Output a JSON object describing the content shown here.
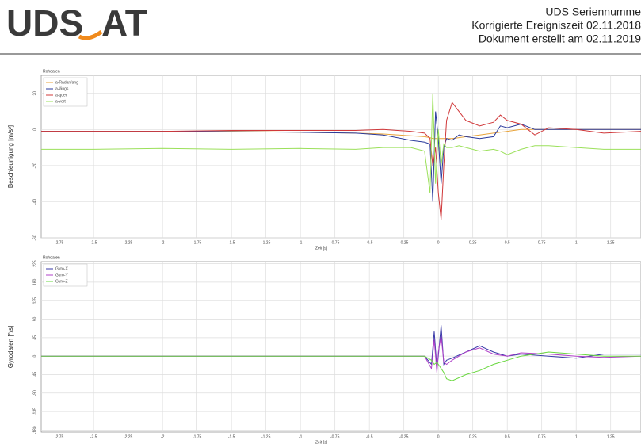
{
  "header": {
    "logo_left": "UDS",
    "logo_right": "AT",
    "lines": [
      "UDS Seriennumme",
      "Korrigierte Ereigniszeit 02.11.2018",
      "Dokument erstellt am 02.11.2019"
    ]
  },
  "chart_data": [
    {
      "type": "line",
      "title": "Rohdaten",
      "x_label": "Zeit [s]",
      "y_label": "Beschleunigung [m/s²]",
      "grid": true,
      "legend": "top-left",
      "xlim": [
        -2.88,
        1.47
      ],
      "xticks": [
        -2.75,
        -2.5,
        -2.25,
        -2,
        -1.75,
        -1.5,
        -1.25,
        -1,
        -0.75,
        -0.5,
        -0.25,
        0,
        0.25,
        0.5,
        0.75,
        1,
        1.25
      ],
      "ylim": [
        -60,
        30
      ],
      "yticks": [
        -60,
        -40,
        -20,
        0,
        20
      ],
      "x": [
        -2.88,
        -2.5,
        -2,
        -1.5,
        -1,
        -0.6,
        -0.4,
        -0.2,
        -0.1,
        -0.06,
        -0.04,
        -0.02,
        0,
        0.02,
        0.04,
        0.06,
        0.1,
        0.15,
        0.2,
        0.3,
        0.4,
        0.45,
        0.5,
        0.6,
        0.7,
        0.8,
        1,
        1.2,
        1.47
      ],
      "series": [
        {
          "name": "a-Radanfang",
          "color": "#e8a33a",
          "values": [
            -1,
            -1,
            -1,
            -1,
            -1.5,
            -2,
            -2.5,
            -3.5,
            -4,
            -4.5,
            -5,
            -5,
            -5,
            -5,
            -5,
            -5,
            -5,
            -4.5,
            -4,
            -3,
            -2,
            -1.5,
            -1,
            0,
            0,
            0,
            0,
            0,
            0
          ]
        },
        {
          "name": "a-längs",
          "color": "#2a3a9c",
          "values": [
            -1,
            -1,
            -1,
            -1.2,
            -1.5,
            -2,
            -3,
            -6,
            -7,
            -8,
            -40,
            10,
            -5,
            -30,
            -10,
            -5,
            -6,
            -3,
            -4,
            -5,
            -4,
            2,
            1,
            3,
            0,
            0,
            0,
            0,
            0
          ]
        },
        {
          "name": "a-quer",
          "color": "#d0383a",
          "values": [
            -1,
            -1,
            -1,
            -0.5,
            -0.5,
            -0.5,
            0,
            -1,
            -2,
            -5,
            -20,
            -10,
            -35,
            -50,
            -20,
            5,
            15,
            10,
            5,
            2,
            4,
            8,
            5,
            3,
            -3,
            1,
            0,
            -2,
            -1
          ]
        },
        {
          "name": "a-vert",
          "color": "#9be05a",
          "values": [
            -11,
            -11,
            -10.5,
            -11,
            -10.5,
            -11,
            -10,
            -10,
            -12,
            -35,
            20,
            -30,
            0,
            -20,
            -8,
            -10,
            -10,
            -9,
            -10,
            -12,
            -11,
            -12,
            -14,
            -11,
            -9,
            -9,
            -10,
            -11,
            -11
          ]
        }
      ]
    },
    {
      "type": "line",
      "title": "Rohdaten",
      "x_label": "Zeit [s]",
      "y_label": "Gyrodaten [°/s]",
      "grid": true,
      "legend": "top-left",
      "xlim": [
        -2.88,
        1.47
      ],
      "xticks": [
        -2.75,
        -2.5,
        -2.25,
        -2,
        -1.75,
        -1.5,
        -1.25,
        -1,
        -0.75,
        -0.5,
        -0.25,
        0,
        0.25,
        0.5,
        0.75,
        1,
        1.25
      ],
      "ylim": [
        -185,
        230
      ],
      "yticks": [
        -180,
        -135,
        -90,
        -45,
        0,
        45,
        90,
        135,
        180,
        225
      ],
      "x": [
        -2.88,
        -2,
        -1,
        -0.5,
        -0.1,
        -0.05,
        -0.03,
        -0.01,
        0,
        0.02,
        0.04,
        0.06,
        0.1,
        0.2,
        0.3,
        0.4,
        0.5,
        0.6,
        0.8,
        1,
        1.2,
        1.47
      ],
      "series": [
        {
          "name": "Gyro-X",
          "color": "#3a3aa8",
          "values": [
            0,
            0,
            0,
            0,
            0,
            -20,
            60,
            -30,
            0,
            75,
            -20,
            -10,
            -5,
            10,
            25,
            10,
            0,
            5,
            0,
            -5,
            5,
            5
          ]
        },
        {
          "name": "Gyro-Y",
          "color": "#b040c8",
          "values": [
            0,
            0,
            0,
            0,
            0,
            -30,
            40,
            -40,
            10,
            50,
            -15,
            -20,
            -10,
            10,
            20,
            5,
            0,
            8,
            5,
            0,
            -3,
            0
          ]
        },
        {
          "name": "Gyro-Z",
          "color": "#6ad840",
          "values": [
            0,
            0,
            0,
            0,
            0,
            -10,
            -20,
            -15,
            -20,
            -30,
            -40,
            -55,
            -60,
            -45,
            -35,
            -20,
            -10,
            0,
            10,
            5,
            0,
            0
          ]
        }
      ]
    }
  ]
}
